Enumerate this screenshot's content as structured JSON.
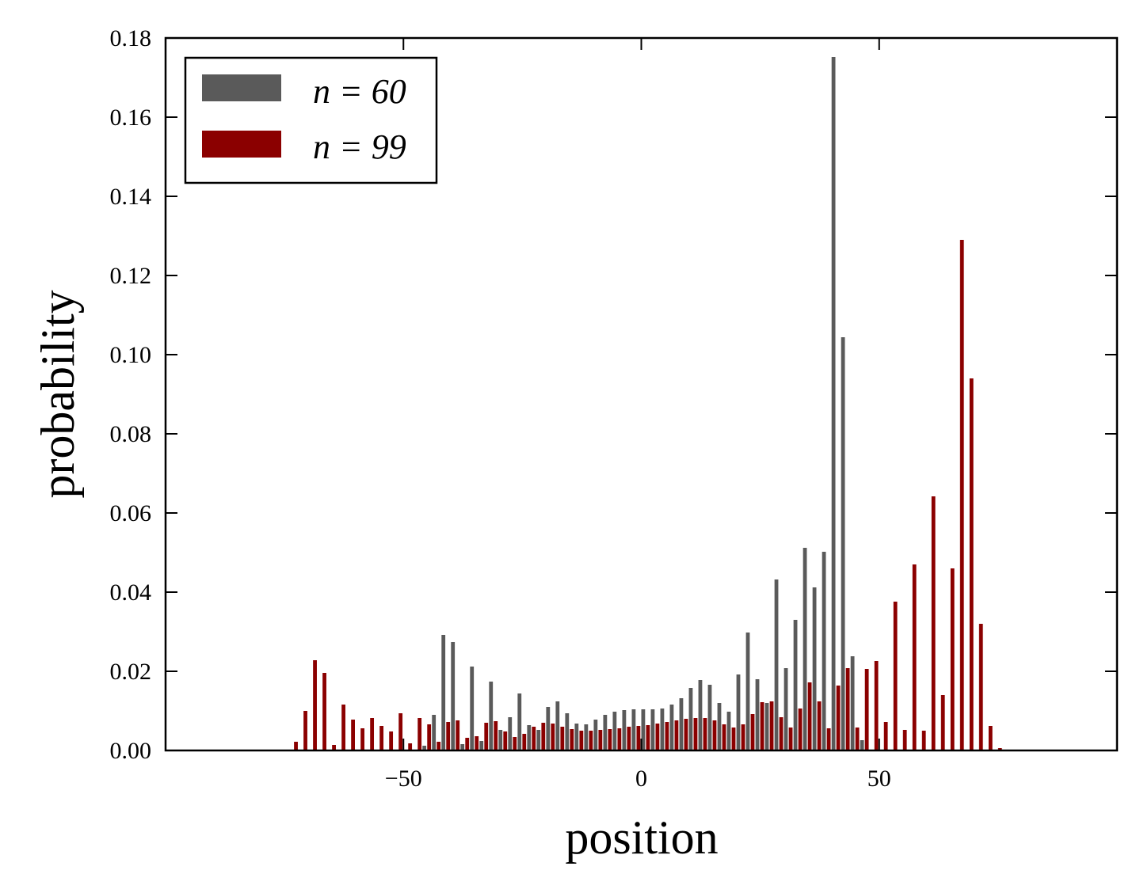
{
  "chart_data": {
    "type": "bar",
    "title": "",
    "xlabel": "position",
    "ylabel": "probability",
    "xlim": [
      -100,
      100
    ],
    "ylim": [
      0,
      0.18
    ],
    "xticks": [
      -50,
      0,
      50
    ],
    "xtick_labels": [
      "−50",
      "0",
      "50"
    ],
    "yticks": [
      0,
      0.02,
      0.04,
      0.06,
      0.08,
      0.1,
      0.12,
      0.14,
      0.16,
      0.18
    ],
    "ytick_labels": [
      "0.00",
      "0.02",
      "0.04",
      "0.06",
      "0.08",
      "0.10",
      "0.12",
      "0.14",
      "0.16",
      "0.18"
    ],
    "grid": false,
    "legend_position": "top-left",
    "series": [
      {
        "name": "n = 60",
        "color": "#5a5a5a",
        "x": [
          -46,
          -44,
          -42,
          -40,
          -38,
          -36,
          -34,
          -32,
          -30,
          -28,
          -26,
          -24,
          -22,
          -20,
          -18,
          -16,
          -14,
          -12,
          -10,
          -8,
          -6,
          -4,
          -2,
          0,
          2,
          4,
          6,
          8,
          10,
          12,
          14,
          16,
          18,
          20,
          22,
          24,
          26,
          28,
          30,
          32,
          34,
          36,
          38,
          40,
          42,
          44,
          46
        ],
        "values": [
          0.0012,
          0.009,
          0.0292,
          0.0274,
          0.0016,
          0.0212,
          0.0024,
          0.0174,
          0.0052,
          0.0084,
          0.0144,
          0.0064,
          0.0052,
          0.011,
          0.0124,
          0.0094,
          0.0068,
          0.0066,
          0.0078,
          0.009,
          0.0098,
          0.0102,
          0.0104,
          0.0104,
          0.0104,
          0.0106,
          0.0116,
          0.0132,
          0.0158,
          0.0178,
          0.0166,
          0.012,
          0.0098,
          0.0192,
          0.0298,
          0.018,
          0.012,
          0.0432,
          0.0208,
          0.033,
          0.0512,
          0.0412,
          0.0502,
          0.1752,
          0.1044,
          0.0238,
          0.0026
        ]
      },
      {
        "name": "n = 99",
        "color": "#8b0000",
        "x": [
          -73,
          -71,
          -69,
          -67,
          -65,
          -63,
          -61,
          -59,
          -57,
          -55,
          -53,
          -51,
          -49,
          -47,
          -45,
          -43,
          -41,
          -39,
          -37,
          -35,
          -33,
          -31,
          -29,
          -27,
          -25,
          -23,
          -21,
          -19,
          -17,
          -15,
          -13,
          -11,
          -9,
          -7,
          -5,
          -3,
          -1,
          1,
          3,
          5,
          7,
          9,
          11,
          13,
          15,
          17,
          19,
          21,
          23,
          25,
          27,
          29,
          31,
          33,
          35,
          37,
          39,
          41,
          43,
          45,
          47,
          49,
          51,
          53,
          55,
          57,
          59,
          61,
          63,
          65,
          67,
          69,
          71,
          73,
          75
        ],
        "values": [
          0.0022,
          0.01,
          0.0228,
          0.0196,
          0.0014,
          0.0116,
          0.0078,
          0.0056,
          0.0082,
          0.0062,
          0.0048,
          0.0094,
          0.0018,
          0.0082,
          0.0066,
          0.0022,
          0.0072,
          0.0076,
          0.0032,
          0.0036,
          0.007,
          0.0074,
          0.0048,
          0.0034,
          0.0042,
          0.006,
          0.007,
          0.0068,
          0.006,
          0.0054,
          0.005,
          0.005,
          0.0052,
          0.0054,
          0.0056,
          0.006,
          0.0062,
          0.0064,
          0.0068,
          0.0072,
          0.0076,
          0.008,
          0.0082,
          0.0082,
          0.0076,
          0.0066,
          0.0058,
          0.0066,
          0.0092,
          0.0122,
          0.0124,
          0.0084,
          0.0058,
          0.0106,
          0.0172,
          0.0124,
          0.0056,
          0.0164,
          0.0208,
          0.0058,
          0.0206,
          0.0226,
          0.0072,
          0.0376,
          0.0052,
          0.047,
          0.005,
          0.0642,
          0.014,
          0.046,
          0.129,
          0.094,
          0.032,
          0.0062,
          0.0006
        ]
      }
    ]
  }
}
